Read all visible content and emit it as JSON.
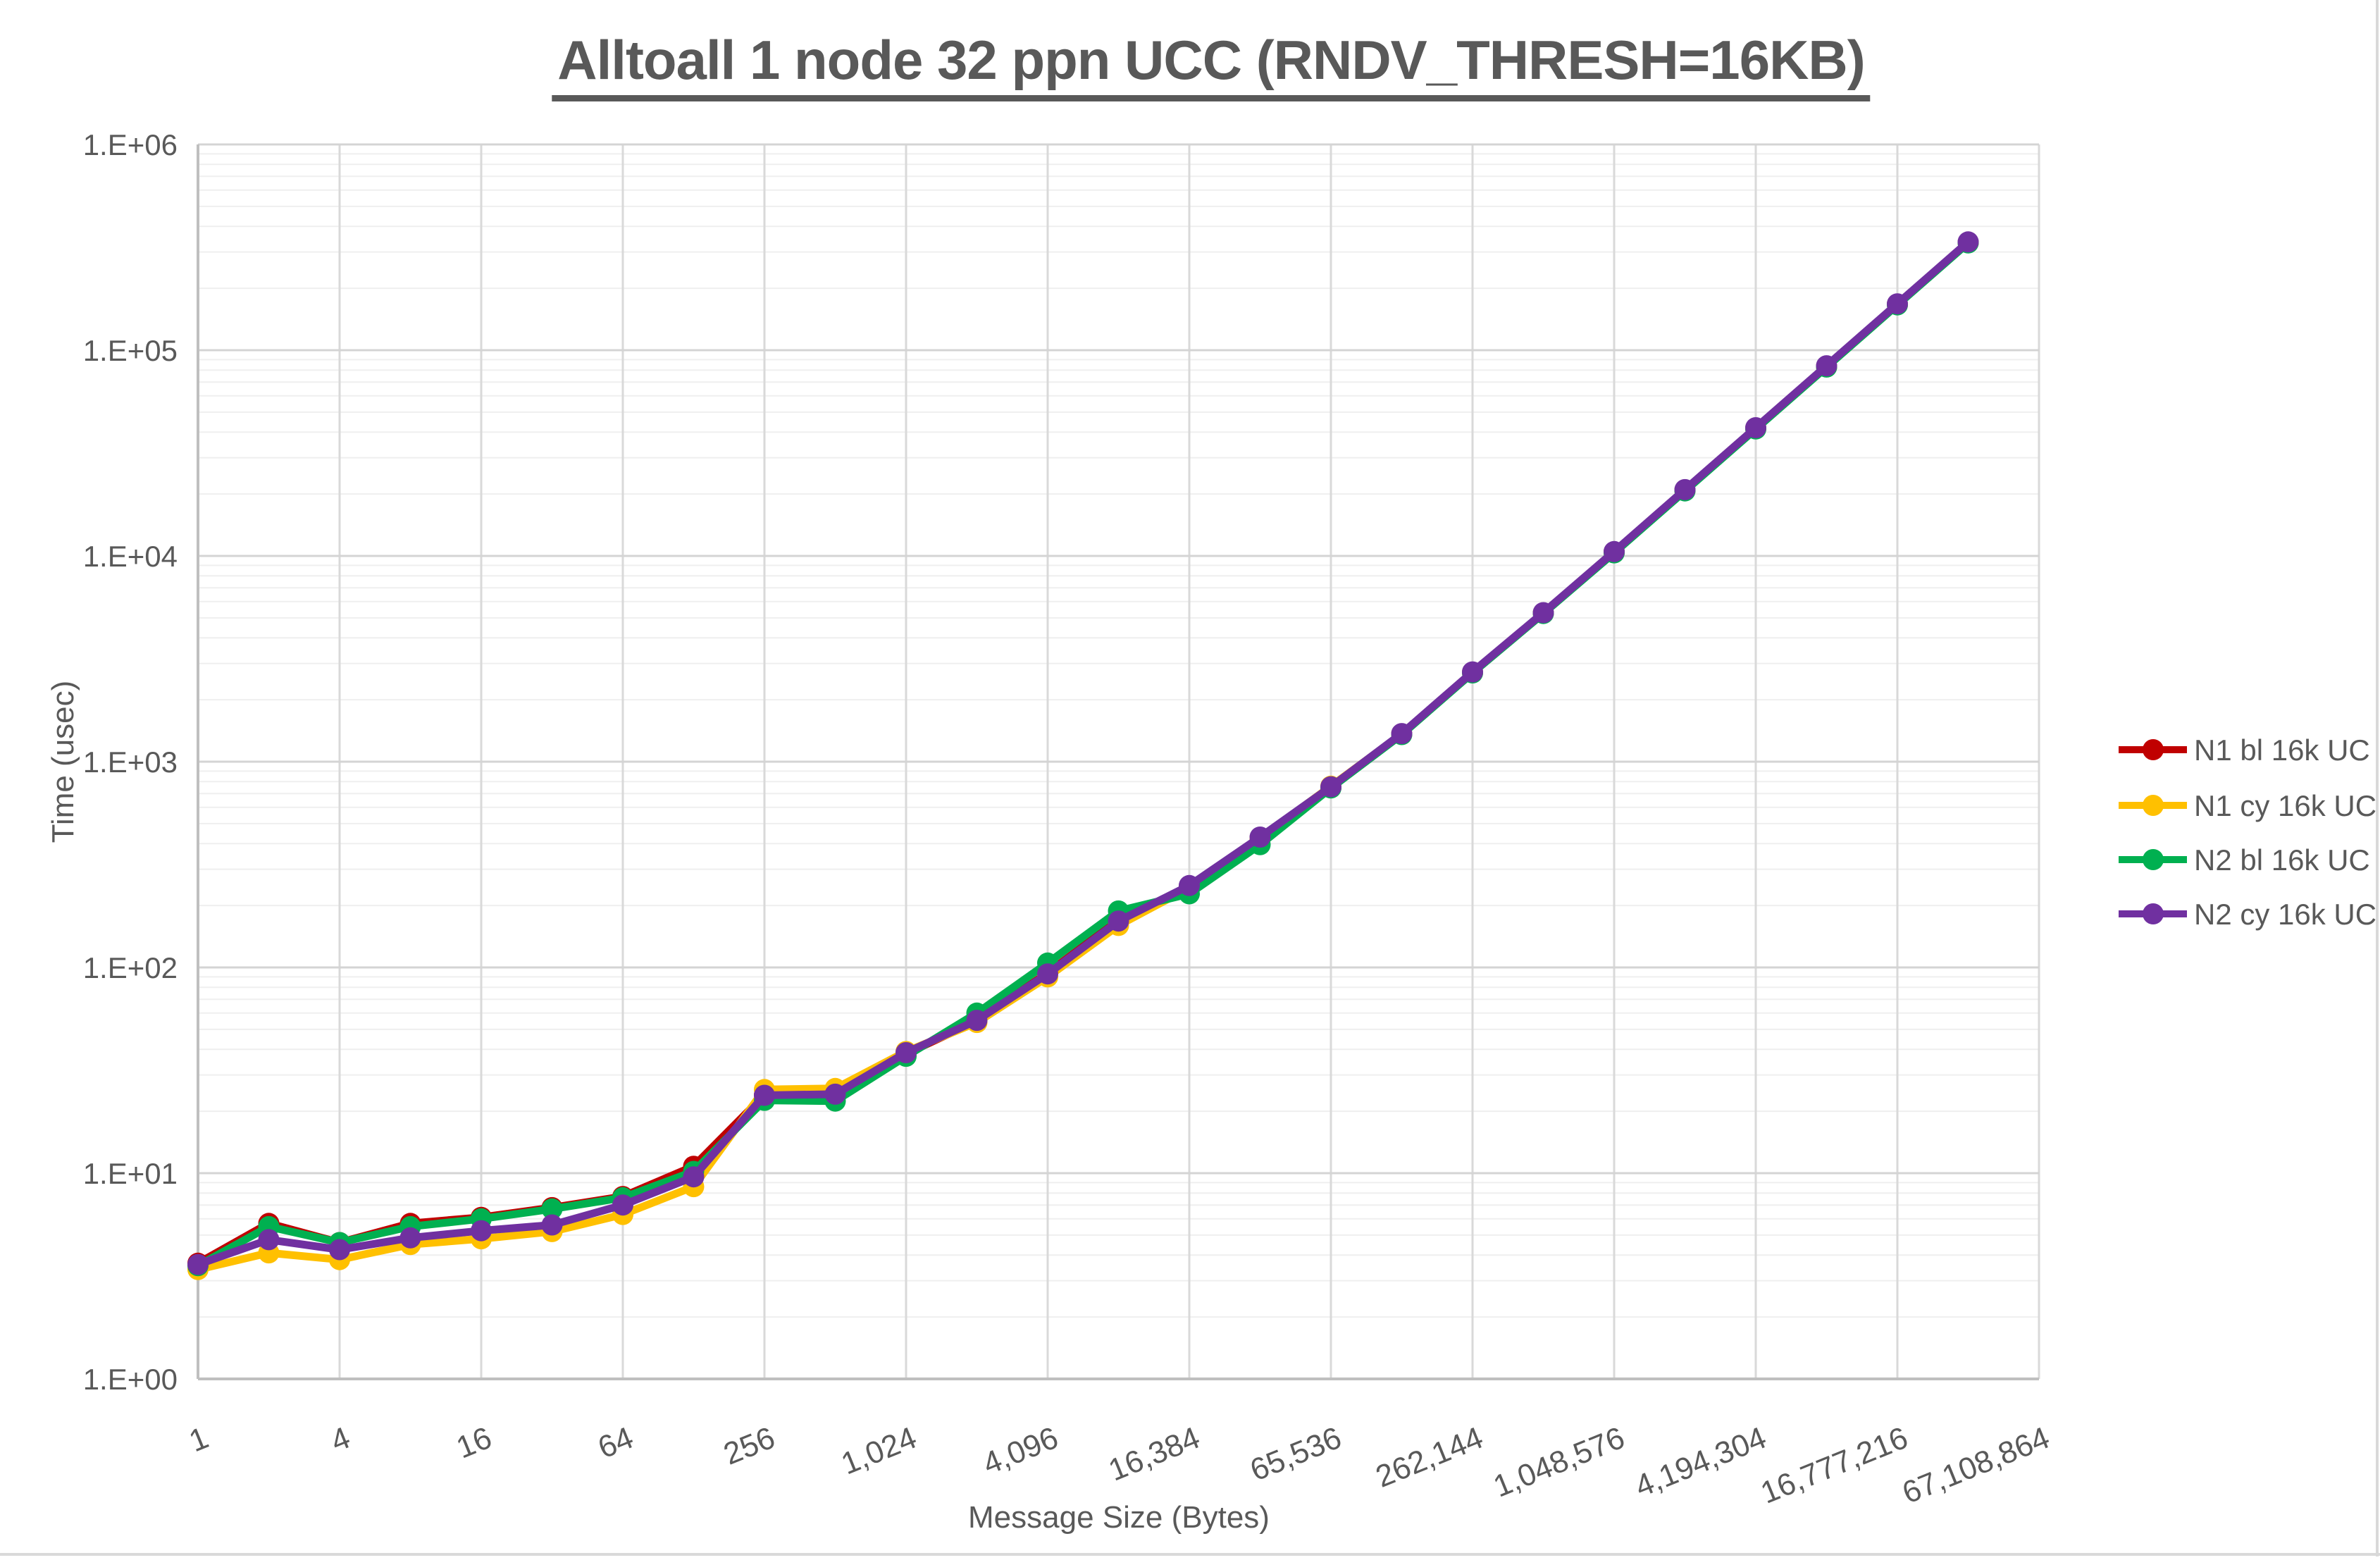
{
  "window": {
    "background": "#FFFFFF",
    "border_color": "#D9D9D9"
  },
  "chart": {
    "title": "Alltoall 1 node 32 ppn UCC (RNDV_THRESH=16KB)",
    "title_color": "#595959",
    "text_color": "#595959",
    "axis_line_color": "#BFBFBF",
    "major_grid_color": "#D4D4D4",
    "minor_grid_color": "#EFEFEF",
    "vertical_grid_color": "#D9D9D9"
  },
  "chart_data": {
    "type": "line",
    "title": "Alltoall 1 node 32 ppn UCC (RNDV_THRESH=16KB)",
    "xlabel": "Message Size (Bytes)",
    "ylabel": "Time (usec)",
    "x_scale": "log2",
    "y_scale": "log10",
    "ylim": [
      1,
      1000000
    ],
    "xlim": [
      1,
      67108864
    ],
    "grid": true,
    "legend_position": "right",
    "y_ticks": [
      1,
      10,
      100,
      1000,
      10000,
      100000,
      1000000
    ],
    "y_tick_labels": [
      "1.E+00",
      "1.E+01",
      "1.E+02",
      "1.E+03",
      "1.E+04",
      "1.E+05",
      "1.E+06"
    ],
    "x_ticks": [
      1,
      4,
      16,
      64,
      256,
      1024,
      4096,
      16384,
      65536,
      262144,
      1048576,
      4194304,
      16777216,
      67108864
    ],
    "x_tick_labels": [
      "1",
      "4",
      "16",
      "64",
      "256",
      "1,024",
      "4,096",
      "16,384",
      "65,536",
      "262,144",
      "1,048,576",
      "4,194,304",
      "16,777,216",
      "67,108,864"
    ],
    "x": [
      1,
      2,
      4,
      8,
      16,
      32,
      64,
      128,
      256,
      512,
      1024,
      2048,
      4096,
      8192,
      16384,
      32768,
      65536,
      131072,
      262144,
      524288,
      1048576,
      2097152,
      4194304,
      8388608,
      16777216,
      33554432
    ],
    "series": [
      {
        "name": "N1 bl 16k UC",
        "color": "#C00000",
        "values": [
          3.65,
          5.7,
          4.6,
          5.7,
          6.1,
          6.8,
          7.7,
          10.8,
          24.0,
          24.5,
          38.0,
          55,
          94,
          170,
          246,
          426,
          750,
          1365,
          2720,
          5280,
          10450,
          20900,
          41800,
          83500,
          167000,
          334000
        ]
      },
      {
        "name": "N1 cy 16k UC",
        "color": "#FFC000",
        "values": [
          3.4,
          4.1,
          3.8,
          4.5,
          4.8,
          5.2,
          6.3,
          8.6,
          25.5,
          25.8,
          39.0,
          54,
          90,
          160,
          244,
          424,
          760,
          1360,
          2710,
          5270,
          10400,
          20800,
          41600,
          83000,
          166500,
          333000
        ]
      },
      {
        "name": "N2 bl 16k UC",
        "color": "#00B050",
        "values": [
          3.55,
          5.5,
          4.6,
          5.5,
          6.0,
          6.7,
          7.6,
          10.2,
          22.6,
          22.4,
          37.0,
          60,
          105,
          188,
          228,
          395,
          745,
          1355,
          2700,
          5250,
          10350,
          20700,
          41400,
          82800,
          166000,
          332000
        ]
      },
      {
        "name": "N2 cy 16k UC",
        "color": "#7030A0",
        "values": [
          3.6,
          4.75,
          4.25,
          4.85,
          5.25,
          5.6,
          7.0,
          9.6,
          23.9,
          24.2,
          38.5,
          55.3,
          93,
          168,
          250,
          430,
          755,
          1370,
          2730,
          5300,
          10500,
          21000,
          42000,
          84000,
          168000,
          336000
        ]
      }
    ]
  }
}
